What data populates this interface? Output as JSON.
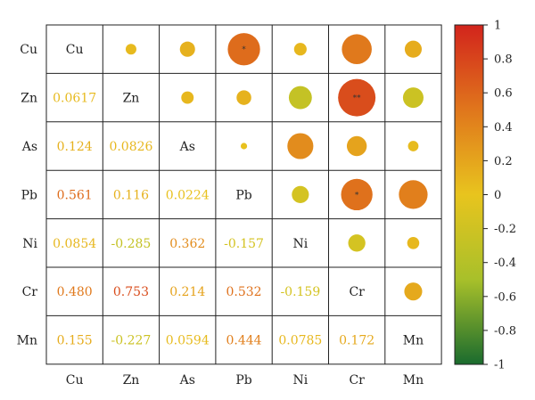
{
  "chart_data": {
    "type": "correlation-matrix",
    "variables": [
      "Cu",
      "Zn",
      "As",
      "Pb",
      "Ni",
      "Cr",
      "Mn"
    ],
    "matrix": [
      [
        1,
        0.0617,
        0.124,
        0.561,
        0.0854,
        0.48,
        0.155
      ],
      [
        0.0617,
        1,
        0.0826,
        0.116,
        -0.285,
        0.753,
        -0.227
      ],
      [
        0.124,
        0.0826,
        1,
        0.0224,
        0.362,
        0.214,
        0.0594
      ],
      [
        0.561,
        0.116,
        0.0224,
        1,
        -0.157,
        0.532,
        0.444
      ],
      [
        0.0854,
        -0.285,
        0.362,
        -0.157,
        1,
        -0.159,
        0.0785
      ],
      [
        0.48,
        0.753,
        0.214,
        0.532,
        -0.159,
        1,
        0.172
      ],
      [
        0.155,
        -0.227,
        0.0594,
        0.444,
        0.0785,
        0.172,
        1
      ]
    ],
    "lower_labels": [
      [
        "",
        "",
        "",
        "",
        "",
        "",
        ""
      ],
      [
        "0.0617",
        "",
        "",
        "",
        "",
        "",
        ""
      ],
      [
        "0.124",
        "0.0826",
        "",
        "",
        "",
        "",
        ""
      ],
      [
        "0.561",
        "0.116",
        "0.0224",
        "",
        "",
        "",
        ""
      ],
      [
        "0.0854",
        "-0.285",
        "0.362",
        "-0.157",
        "",
        "",
        ""
      ],
      [
        "0.480",
        "0.753",
        "0.214",
        "0.532",
        "-0.159",
        "",
        ""
      ],
      [
        "0.155",
        "-0.227",
        "0.0594",
        "0.444",
        "0.0785",
        "0.172",
        ""
      ]
    ],
    "significance": [
      [
        "",
        "",
        "",
        "*",
        "",
        "",
        ""
      ],
      [
        "",
        "",
        "",
        "",
        "",
        "**",
        ""
      ],
      [
        "",
        "",
        "",
        "",
        "",
        "",
        ""
      ],
      [
        "",
        "",
        "",
        "",
        "",
        "*",
        ""
      ],
      [
        "",
        "",
        "",
        "",
        "",
        "",
        ""
      ],
      [
        "",
        "",
        "",
        "",
        "",
        "",
        ""
      ],
      [
        "",
        "",
        "",
        "",
        "",
        "",
        ""
      ]
    ],
    "upper_display": "circle",
    "lower_display": "number",
    "colorbar": {
      "range": [
        -1,
        1
      ],
      "ticks": [
        "1",
        "0.8",
        "0.6",
        "0.4",
        "0.2",
        "0",
        "-0.2",
        "-0.4",
        "-0.6",
        "-0.8",
        "-1"
      ],
      "tick_values": [
        1,
        0.8,
        0.6,
        0.4,
        0.2,
        0,
        -0.2,
        -0.4,
        -0.6,
        -0.8,
        -1
      ],
      "colors": [
        "#1a6b2e",
        "#e6c21e",
        "#d9261c"
      ]
    }
  }
}
